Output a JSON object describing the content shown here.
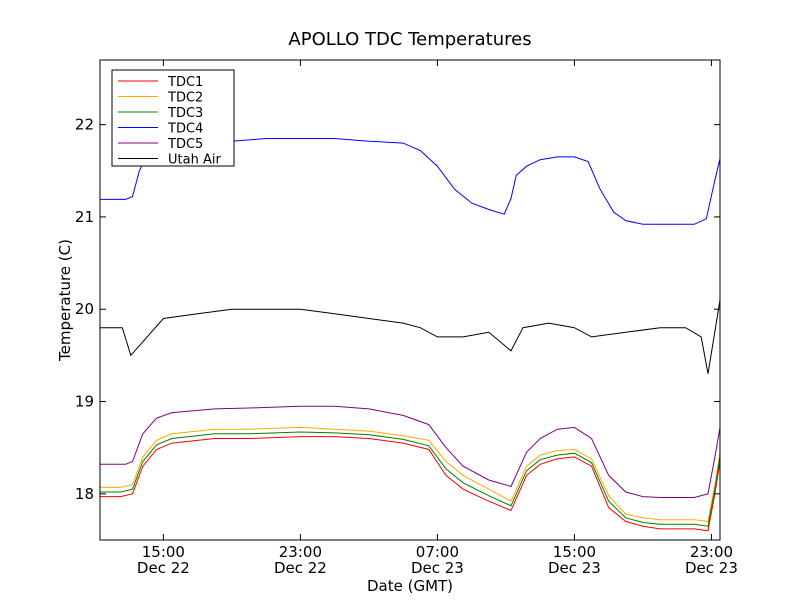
{
  "chart_data": {
    "type": "line",
    "title": "APOLLO TDC Temperatures",
    "xlabel": "Date (GMT)",
    "ylabel": "Temperature (C)",
    "x_unit": "hours (from Dec 22 00:00 GMT)",
    "xlim": [
      11.3,
      47.5
    ],
    "ylim": [
      17.5,
      22.7
    ],
    "grid": false,
    "legend_position": "top-left",
    "x_ticks": [
      {
        "value": 15,
        "time": "15:00",
        "date": "Dec 22"
      },
      {
        "value": 23,
        "time": "23:00",
        "date": "Dec 22"
      },
      {
        "value": 31,
        "time": "07:00",
        "date": "Dec 23"
      },
      {
        "value": 39,
        "time": "15:00",
        "date": "Dec 23"
      },
      {
        "value": 47,
        "time": "23:00",
        "date": "Dec 23"
      }
    ],
    "y_ticks": [
      18,
      19,
      20,
      21,
      22
    ],
    "series": [
      {
        "name": "TDC1",
        "color": "#ff0000",
        "x": [
          11.3,
          12.5,
          13.2,
          13.8,
          14.6,
          15.5,
          18,
          20,
          23,
          25,
          27,
          29,
          30.5,
          31.5,
          32.5,
          34,
          35.3,
          36.2,
          37,
          38,
          39,
          40,
          41,
          42,
          43,
          44,
          45,
          46,
          46.8,
          47.2,
          47.5
        ],
        "y": [
          17.97,
          17.97,
          18.0,
          18.3,
          18.48,
          18.55,
          18.6,
          18.6,
          18.62,
          18.62,
          18.6,
          18.55,
          18.48,
          18.2,
          18.05,
          17.92,
          17.82,
          18.2,
          18.32,
          18.38,
          18.4,
          18.3,
          17.85,
          17.7,
          17.65,
          17.62,
          17.62,
          17.62,
          17.6,
          18.0,
          18.35
        ]
      },
      {
        "name": "TDC2",
        "color": "#ffaa00",
        "x": [
          11.3,
          12.5,
          13.2,
          13.8,
          14.6,
          15.5,
          18,
          20,
          23,
          25,
          27,
          29,
          30.5,
          31.5,
          32.5,
          34,
          35.3,
          36.2,
          37,
          38,
          39,
          40,
          41,
          42,
          43,
          44,
          45,
          46,
          46.8,
          47.2,
          47.5
        ],
        "y": [
          18.07,
          18.07,
          18.1,
          18.4,
          18.58,
          18.65,
          18.7,
          18.7,
          18.72,
          18.7,
          18.68,
          18.63,
          18.58,
          18.35,
          18.2,
          18.05,
          17.92,
          18.3,
          18.42,
          18.47,
          18.48,
          18.38,
          17.98,
          17.78,
          17.74,
          17.72,
          17.72,
          17.72,
          17.7,
          18.1,
          18.45
        ]
      },
      {
        "name": "TDC3",
        "color": "#008000",
        "x": [
          11.3,
          12.5,
          13.2,
          13.8,
          14.6,
          15.5,
          18,
          20,
          23,
          25,
          27,
          29,
          30.5,
          31.5,
          32.5,
          34,
          35.3,
          36.2,
          37,
          38,
          39,
          40,
          41,
          42,
          43,
          44,
          45,
          46,
          46.8,
          47.2,
          47.5
        ],
        "y": [
          18.02,
          18.02,
          18.05,
          18.35,
          18.53,
          18.6,
          18.65,
          18.65,
          18.67,
          18.66,
          18.64,
          18.59,
          18.52,
          18.27,
          18.12,
          17.98,
          17.87,
          18.25,
          18.37,
          18.42,
          18.44,
          18.34,
          17.92,
          17.74,
          17.69,
          17.67,
          17.67,
          17.67,
          17.65,
          18.05,
          18.4
        ]
      },
      {
        "name": "TDC4",
        "color": "#0000ff",
        "x": [
          11.3,
          12.8,
          13.2,
          13.6,
          14.0,
          15.0,
          17,
          19,
          21,
          23,
          25,
          27,
          29,
          30,
          31,
          32,
          33,
          34,
          34.9,
          35.3,
          35.6,
          36.2,
          37,
          38,
          39,
          39.8,
          40.5,
          41.3,
          42,
          43,
          44,
          45,
          46,
          46.7,
          47.2,
          47.5
        ],
        "y": [
          21.19,
          21.19,
          21.22,
          21.5,
          21.65,
          21.75,
          21.8,
          21.82,
          21.85,
          21.85,
          21.85,
          21.82,
          21.8,
          21.72,
          21.55,
          21.3,
          21.15,
          21.08,
          21.03,
          21.2,
          21.45,
          21.55,
          21.62,
          21.65,
          21.65,
          21.6,
          21.3,
          21.05,
          20.96,
          20.92,
          20.92,
          20.92,
          20.92,
          20.98,
          21.4,
          21.63
        ]
      },
      {
        "name": "TDC5",
        "color": "#800080",
        "x": [
          11.3,
          12.8,
          13.2,
          13.8,
          14.6,
          15.5,
          18,
          20,
          23,
          25,
          27,
          29,
          30.5,
          31.5,
          32.5,
          34,
          35.3,
          36.2,
          37,
          38,
          39,
          40,
          41,
          42,
          43,
          44,
          45,
          46,
          46.8,
          47.2,
          47.5
        ],
        "y": [
          18.32,
          18.32,
          18.35,
          18.65,
          18.82,
          18.88,
          18.92,
          18.93,
          18.95,
          18.95,
          18.92,
          18.85,
          18.75,
          18.5,
          18.3,
          18.15,
          18.08,
          18.45,
          18.6,
          18.7,
          18.72,
          18.6,
          18.2,
          18.02,
          17.97,
          17.96,
          17.96,
          17.96,
          18.0,
          18.4,
          18.72
        ]
      },
      {
        "name": "Utah Air",
        "color": "#000000",
        "x": [
          11.3,
          12.6,
          13.1,
          15.0,
          17.0,
          19.0,
          21.0,
          23.0,
          25.0,
          27.0,
          29.0,
          30.0,
          31.0,
          32.5,
          34.0,
          35.3,
          36.0,
          37.5,
          39.0,
          40.0,
          42.0,
          44.0,
          45.5,
          46.4,
          46.8,
          47.5
        ],
        "y": [
          19.8,
          19.8,
          19.5,
          19.9,
          19.95,
          20.0,
          20.0,
          20.0,
          19.95,
          19.9,
          19.85,
          19.8,
          19.7,
          19.7,
          19.75,
          19.55,
          19.8,
          19.85,
          19.8,
          19.7,
          19.75,
          19.8,
          19.8,
          19.7,
          19.3,
          20.1
        ]
      }
    ]
  }
}
